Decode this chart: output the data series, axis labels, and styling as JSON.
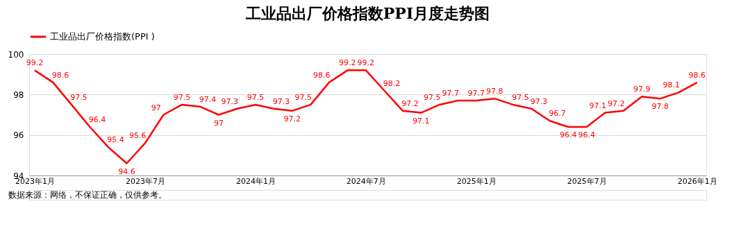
{
  "chart_data": {
    "type": "line",
    "title": "工业品出厂价格指数PPI月度走势图",
    "categories": [
      "2023年1月",
      null,
      null,
      null,
      null,
      null,
      "2023年7月",
      null,
      null,
      null,
      null,
      null,
      "2024年1月",
      null,
      null,
      null,
      null,
      null,
      "2024年7月",
      null,
      null,
      null,
      null,
      null,
      "2025年1月",
      null,
      null,
      null,
      null,
      null,
      "2025年7月",
      null,
      null,
      null,
      null,
      null,
      "2026年1月"
    ],
    "series": [
      {
        "name": "工业品出厂价格指数(PPI )",
        "color": "#ff0000",
        "values": [
          99.2,
          98.6,
          97.5,
          96.4,
          95.4,
          94.6,
          95.6,
          97,
          97.5,
          97.4,
          97,
          97.3,
          97.5,
          97.3,
          97.2,
          97.5,
          98.6,
          99.2,
          99.2,
          98.2,
          97.2,
          97.1,
          97.5,
          97.7,
          97.7,
          97.8,
          97.5,
          97.3,
          96.7,
          96.4,
          96.4,
          97.1,
          97.2,
          97.9,
          97.8,
          98.1,
          98.6
        ]
      }
    ],
    "ylim": [
      94,
      100
    ],
    "yticks": [
      94,
      96,
      98,
      100
    ],
    "grid": "y",
    "legend": "top left",
    "marker": "none",
    "line_style": "solid",
    "data_labels": true,
    "annotations": [
      "数据来源：网络，不保证正确，仅供参考。"
    ]
  }
}
